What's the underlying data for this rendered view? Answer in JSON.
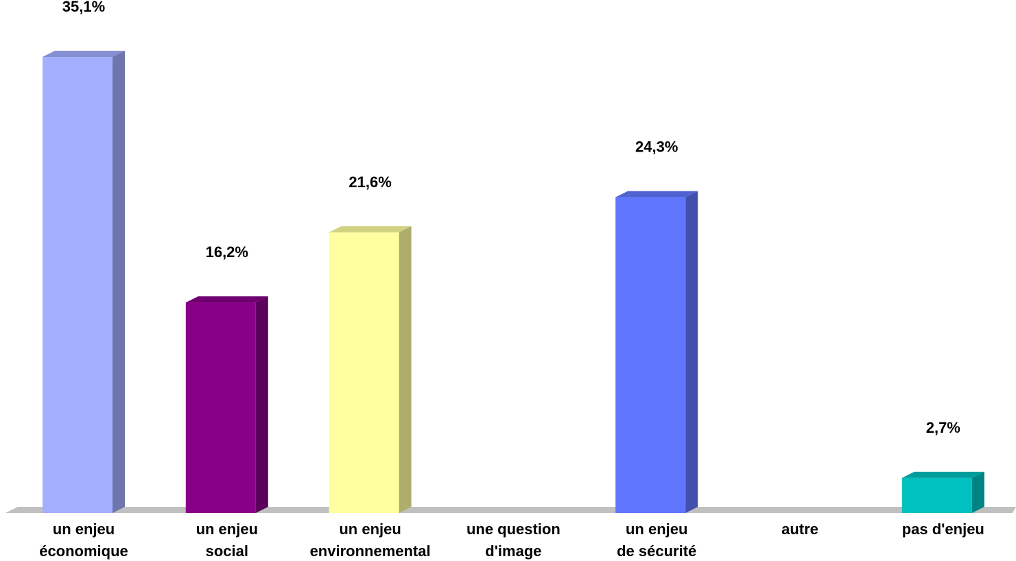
{
  "chart_data": {
    "type": "bar",
    "categories": [
      [
        "un enjeu",
        "économique"
      ],
      [
        "un enjeu",
        "social"
      ],
      [
        "un enjeu",
        "environnemental"
      ],
      [
        "une question",
        "d'image"
      ],
      [
        "un enjeu",
        "de sécurité"
      ],
      [
        "autre"
      ],
      [
        "pas d'enjeu"
      ]
    ],
    "values": [
      35.1,
      16.2,
      21.6,
      0,
      24.3,
      0,
      2.7
    ],
    "data_labels": [
      "35,1%",
      "16,2%",
      "21,6%",
      "",
      "24,3%",
      "",
      "2,7%"
    ],
    "colors": [
      "#A3AEFF",
      "#880088",
      "#FFFF9F",
      "#CCCCCC",
      "#6176FF",
      "#CCCCCC",
      "#00C0C0"
    ],
    "ylim": [
      0,
      35.1
    ],
    "grid": false,
    "legend": "none",
    "floor_color": "#C0C0C0"
  }
}
